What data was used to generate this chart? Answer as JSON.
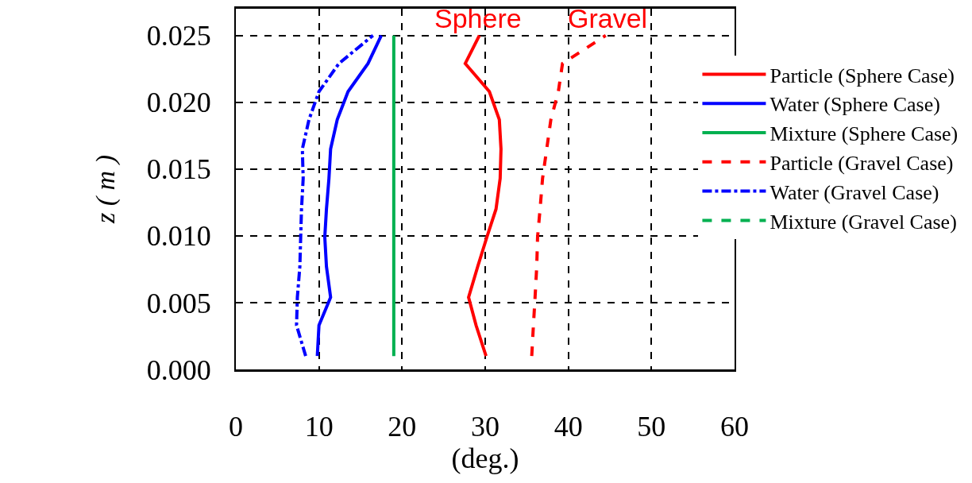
{
  "chart_data": {
    "type": "line",
    "xlabel": "(deg.)",
    "ylabel": "z ( m )",
    "xlim": [
      0,
      60
    ],
    "xticks": [
      0,
      10,
      20,
      30,
      40,
      50,
      60
    ],
    "ylim": [
      0,
      0.027
    ],
    "yticks": [
      {
        "value": 0,
        "label": "0.000"
      },
      {
        "value": 0.005,
        "label": "0.005"
      },
      {
        "value": 0.01,
        "label": "0.010"
      },
      {
        "value": 0.015,
        "label": "0.015"
      },
      {
        "value": 0.02,
        "label": "0.020"
      },
      {
        "value": 0.025,
        "label": "0.025"
      }
    ],
    "grid": true,
    "legend": "top right",
    "marker": "none",
    "annotations": [
      "Sphere",
      "Gravel"
    ],
    "series": [
      {
        "name": "Particle (Sphere Case)",
        "color": "#ff0000",
        "line_style": "solid",
        "x": [
          30.1,
          28.9,
          28.0,
          29.1,
          30.2,
          31.3,
          31.8,
          31.9,
          31.7,
          30.5,
          27.6,
          29.3
        ],
        "values": [
          0.001,
          0.0033,
          0.0054,
          0.0077,
          0.0099,
          0.012,
          0.0143,
          0.0165,
          0.0187,
          0.0208,
          0.0229,
          0.025
        ]
      },
      {
        "name": "Water (Sphere Case)",
        "color": "#0000ff",
        "line_style": "solid",
        "x": [
          9.8,
          10.0,
          11.4,
          10.9,
          10.7,
          10.9,
          11.2,
          11.4,
          12.2,
          13.5,
          15.9,
          17.5
        ],
        "values": [
          0.001,
          0.0033,
          0.0054,
          0.0077,
          0.0099,
          0.012,
          0.0143,
          0.0165,
          0.0187,
          0.0208,
          0.0229,
          0.025
        ]
      },
      {
        "name": "Mixture (Sphere Case)",
        "color": "#00b050",
        "line_style": "solid",
        "x": [
          19.0,
          19.0
        ],
        "values": [
          0.001,
          0.025
        ]
      },
      {
        "name": "Particle (Gravel Case)",
        "color": "#ff0000",
        "line_style": "dashed",
        "x": [
          35.6,
          35.8,
          36.0,
          36.2,
          36.3,
          36.6,
          36.9,
          37.4,
          37.9,
          38.8,
          39.3,
          44.5
        ],
        "values": [
          0.001,
          0.0033,
          0.0054,
          0.0077,
          0.0099,
          0.012,
          0.0143,
          0.0165,
          0.0187,
          0.0208,
          0.0229,
          0.025
        ]
      },
      {
        "name": "Water (Gravel Case)",
        "color": "#0000ff",
        "line_style": "dashdot",
        "x": [
          8.4,
          7.3,
          7.4,
          7.7,
          7.8,
          7.9,
          8.1,
          8.0,
          8.8,
          10.0,
          12.4,
          16.5
        ],
        "values": [
          0.001,
          0.0033,
          0.0054,
          0.0077,
          0.0099,
          0.012,
          0.0143,
          0.0165,
          0.0187,
          0.0208,
          0.0229,
          0.025
        ]
      },
      {
        "name": "Mixture (Gravel Case)",
        "color": "#00b050",
        "line_style": "dashed",
        "x": [
          null,
          null
        ],
        "values": [
          null,
          null
        ]
      }
    ]
  }
}
